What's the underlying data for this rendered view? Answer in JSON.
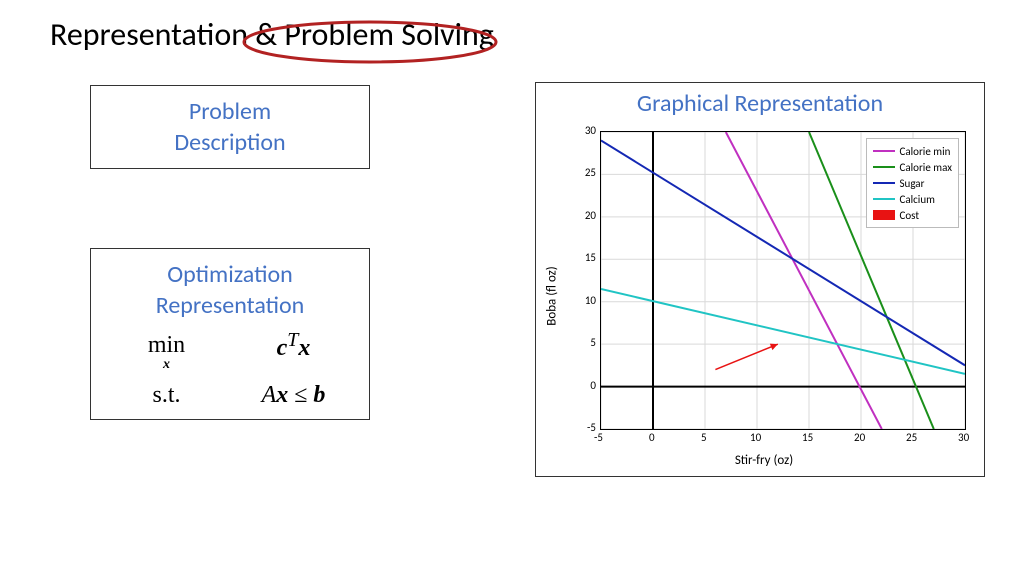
{
  "title": "Representation & Problem Solving",
  "title_oval": {
    "stroke": "#b22222",
    "stroke_width": 3
  },
  "boxes": {
    "problem_description": {
      "label": "Problem\nDescription"
    },
    "optimization": {
      "label": "Optimization\nRepresentation",
      "line1_left": "min",
      "line1_sub": "x",
      "line1_right_html": "<b><i>c</i></b><sup><i>T</i></sup><b><i>x</i></b>",
      "line2_left": "s.t.",
      "line2_right_html": "<i>A</i><b><i>x</i></b> ≤ <b><i>b</i></b>"
    }
  },
  "graph": {
    "title": "Graphical Representation",
    "xlabel": "Stir-fry (oz)",
    "ylabel": "Boba (fl oz)",
    "xlim": [
      -5,
      30
    ],
    "ylim": [
      -5,
      30
    ],
    "xticks": [
      -5,
      0,
      5,
      10,
      15,
      20,
      25,
      30
    ],
    "yticks": [
      -5,
      0,
      5,
      10,
      15,
      20,
      25,
      30
    ],
    "tick_fontsize": 11,
    "label_fontsize": 13,
    "grid_color": "#d9d9d9",
    "axis_zero_color": "#000000",
    "axis_zero_width": 2,
    "background_color": "#ffffff",
    "series": [
      {
        "label": "Calorie min",
        "color": "#c030c0",
        "width": 2,
        "p1": [
          7,
          30
        ],
        "p2": [
          22,
          -5
        ]
      },
      {
        "label": "Calorie max",
        "color": "#1a8f1a",
        "width": 2,
        "p1": [
          15,
          30
        ],
        "p2": [
          27,
          -5
        ]
      },
      {
        "label": "Sugar",
        "color": "#1428b4",
        "width": 2,
        "p1": [
          -5,
          29
        ],
        "p2": [
          30,
          2.5
        ]
      },
      {
        "label": "Calcium",
        "color": "#20c4c4",
        "width": 2,
        "p1": [
          -5,
          11.5
        ],
        "p2": [
          30,
          1.5
        ]
      }
    ],
    "cost_legend": {
      "label": "Cost",
      "color": "#e81313"
    },
    "arrow": {
      "color": "#e81313",
      "from": [
        6,
        2
      ],
      "to": [
        12,
        5
      ],
      "width": 1.5
    }
  }
}
